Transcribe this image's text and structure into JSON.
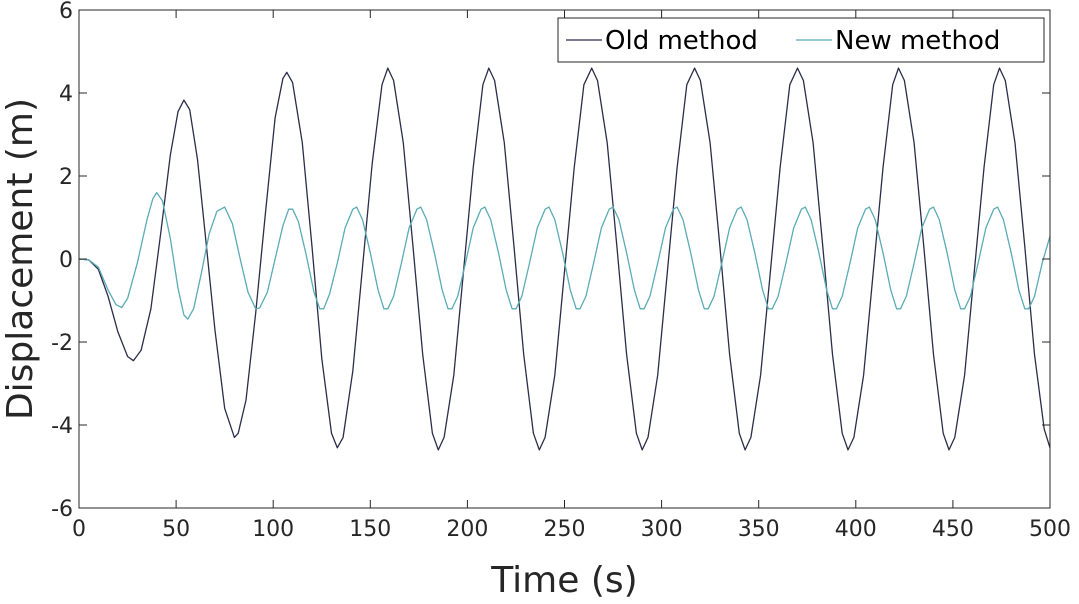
{
  "chart_data": {
    "type": "line",
    "title": "",
    "xlabel": "Time (s)",
    "ylabel": "Displacement (m)",
    "xlim": [
      0,
      500
    ],
    "ylim": [
      -6,
      6
    ],
    "xticks": [
      0,
      50,
      100,
      150,
      200,
      250,
      300,
      350,
      400,
      450,
      500
    ],
    "yticks": [
      -6,
      -4,
      -2,
      0,
      2,
      4,
      6
    ],
    "xtick_labels": [
      "0",
      "50",
      "100",
      "150",
      "200",
      "250",
      "300",
      "350",
      "400",
      "450",
      "500"
    ],
    "ytick_labels": [
      "-6",
      "-4",
      "-2",
      "0",
      "2",
      "4",
      "6"
    ],
    "grid": false,
    "legend_position": "top-right",
    "series": [
      {
        "name": "Old method",
        "color": "#2b2d4a",
        "points": [
          [
            0,
            0
          ],
          [
            5,
            -0.02
          ],
          [
            10,
            -0.25
          ],
          [
            15,
            -0.9
          ],
          [
            20,
            -1.75
          ],
          [
            25,
            -2.35
          ],
          [
            28,
            -2.45
          ],
          [
            32,
            -2.2
          ],
          [
            37,
            -1.2
          ],
          [
            42,
            0.6
          ],
          [
            47,
            2.5
          ],
          [
            51,
            3.55
          ],
          [
            54,
            3.83
          ],
          [
            57,
            3.6
          ],
          [
            61,
            2.4
          ],
          [
            65,
            0.6
          ],
          [
            70,
            -1.7
          ],
          [
            75,
            -3.6
          ],
          [
            80,
            -4.3
          ],
          [
            82,
            -4.2
          ],
          [
            86,
            -3.4
          ],
          [
            91,
            -1.3
          ],
          [
            96,
            1.1
          ],
          [
            101,
            3.4
          ],
          [
            105,
            4.35
          ],
          [
            107,
            4.5
          ],
          [
            110,
            4.25
          ],
          [
            115,
            2.8
          ],
          [
            120,
            0.3
          ],
          [
            125,
            -2.4
          ],
          [
            130,
            -4.2
          ],
          [
            133,
            -4.55
          ],
          [
            136,
            -4.3
          ],
          [
            141,
            -2.7
          ],
          [
            146,
            -0.2
          ],
          [
            151,
            2.3
          ],
          [
            156,
            4.2
          ],
          [
            159,
            4.6
          ],
          [
            162,
            4.3
          ],
          [
            167,
            2.8
          ],
          [
            172,
            0.3
          ],
          [
            177,
            -2.3
          ],
          [
            182,
            -4.2
          ],
          [
            185,
            -4.6
          ],
          [
            188,
            -4.3
          ],
          [
            193,
            -2.8
          ],
          [
            198,
            -0.3
          ],
          [
            203,
            2.2
          ],
          [
            208,
            4.2
          ],
          [
            211,
            4.6
          ],
          [
            214,
            4.3
          ],
          [
            219,
            2.8
          ],
          [
            224,
            0.3
          ],
          [
            229,
            -2.3
          ],
          [
            234,
            -4.2
          ],
          [
            237,
            -4.6
          ],
          [
            240,
            -4.3
          ],
          [
            245,
            -2.8
          ],
          [
            250,
            -0.3
          ],
          [
            255,
            2.2
          ],
          [
            260,
            4.2
          ],
          [
            264,
            4.6
          ],
          [
            267,
            4.3
          ],
          [
            272,
            2.8
          ],
          [
            277,
            0.3
          ],
          [
            282,
            -2.3
          ],
          [
            287,
            -4.2
          ],
          [
            290,
            -4.6
          ],
          [
            293,
            -4.3
          ],
          [
            298,
            -2.8
          ],
          [
            303,
            -0.3
          ],
          [
            308,
            2.2
          ],
          [
            313,
            4.2
          ],
          [
            317,
            4.6
          ],
          [
            320,
            4.3
          ],
          [
            325,
            2.8
          ],
          [
            330,
            0.3
          ],
          [
            335,
            -2.3
          ],
          [
            340,
            -4.2
          ],
          [
            343,
            -4.6
          ],
          [
            346,
            -4.3
          ],
          [
            351,
            -2.8
          ],
          [
            356,
            -0.3
          ],
          [
            361,
            2.2
          ],
          [
            366,
            4.2
          ],
          [
            370,
            4.6
          ],
          [
            373,
            4.3
          ],
          [
            378,
            2.8
          ],
          [
            383,
            0.3
          ],
          [
            388,
            -2.3
          ],
          [
            393,
            -4.2
          ],
          [
            396,
            -4.6
          ],
          [
            399,
            -4.3
          ],
          [
            404,
            -2.8
          ],
          [
            409,
            -0.3
          ],
          [
            414,
            2.2
          ],
          [
            419,
            4.2
          ],
          [
            422,
            4.6
          ],
          [
            425,
            4.3
          ],
          [
            430,
            2.8
          ],
          [
            435,
            0.3
          ],
          [
            440,
            -2.3
          ],
          [
            445,
            -4.2
          ],
          [
            448,
            -4.6
          ],
          [
            451,
            -4.3
          ],
          [
            456,
            -2.8
          ],
          [
            461,
            -0.3
          ],
          [
            466,
            2.2
          ],
          [
            471,
            4.2
          ],
          [
            474,
            4.6
          ],
          [
            477,
            4.3
          ],
          [
            482,
            2.8
          ],
          [
            487,
            0.3
          ],
          [
            492,
            -2.3
          ],
          [
            497,
            -4.1
          ],
          [
            500,
            -4.55
          ]
        ]
      },
      {
        "name": "New method",
        "color": "#5aabb5",
        "points": [
          [
            0,
            0
          ],
          [
            5,
            -0.02
          ],
          [
            10,
            -0.2
          ],
          [
            15,
            -0.75
          ],
          [
            19,
            -1.1
          ],
          [
            22,
            -1.17
          ],
          [
            25,
            -0.95
          ],
          [
            30,
            -0.1
          ],
          [
            35,
            0.95
          ],
          [
            38,
            1.45
          ],
          [
            40,
            1.6
          ],
          [
            43,
            1.4
          ],
          [
            47,
            0.5
          ],
          [
            51,
            -0.7
          ],
          [
            54,
            -1.35
          ],
          [
            56,
            -1.45
          ],
          [
            59,
            -1.2
          ],
          [
            63,
            -0.35
          ],
          [
            67,
            0.6
          ],
          [
            71,
            1.15
          ],
          [
            75,
            1.25
          ],
          [
            79,
            0.85
          ],
          [
            83,
            0.0
          ],
          [
            87,
            -0.8
          ],
          [
            91,
            -1.2
          ],
          [
            93,
            -1.18
          ],
          [
            97,
            -0.8
          ],
          [
            101,
            0.0
          ],
          [
            105,
            0.8
          ],
          [
            108,
            1.2
          ],
          [
            110,
            1.2
          ],
          [
            113,
            0.9
          ],
          [
            117,
            0.1
          ],
          [
            121,
            -0.8
          ],
          [
            124,
            -1.2
          ],
          [
            126,
            -1.2
          ],
          [
            129,
            -0.85
          ],
          [
            133,
            -0.1
          ],
          [
            137,
            0.75
          ],
          [
            141,
            1.2
          ],
          [
            143,
            1.25
          ],
          [
            146,
            0.95
          ],
          [
            150,
            0.15
          ],
          [
            154,
            -0.75
          ],
          [
            157,
            -1.2
          ],
          [
            159,
            -1.2
          ],
          [
            162,
            -0.9
          ],
          [
            166,
            -0.1
          ],
          [
            170,
            0.75
          ],
          [
            174,
            1.2
          ],
          [
            176,
            1.25
          ],
          [
            179,
            0.95
          ],
          [
            183,
            0.15
          ],
          [
            187,
            -0.75
          ],
          [
            190,
            -1.2
          ],
          [
            192,
            -1.2
          ],
          [
            195,
            -0.9
          ],
          [
            199,
            -0.1
          ],
          [
            203,
            0.75
          ],
          [
            207,
            1.2
          ],
          [
            209,
            1.25
          ],
          [
            212,
            0.95
          ],
          [
            216,
            0.15
          ],
          [
            220,
            -0.75
          ],
          [
            223,
            -1.2
          ],
          [
            225,
            -1.2
          ],
          [
            228,
            -0.9
          ],
          [
            232,
            -0.1
          ],
          [
            236,
            0.75
          ],
          [
            240,
            1.2
          ],
          [
            242,
            1.25
          ],
          [
            245,
            0.95
          ],
          [
            249,
            0.15
          ],
          [
            253,
            -0.75
          ],
          [
            256,
            -1.2
          ],
          [
            258,
            -1.2
          ],
          [
            261,
            -0.9
          ],
          [
            265,
            -0.1
          ],
          [
            269,
            0.75
          ],
          [
            273,
            1.2
          ],
          [
            275,
            1.25
          ],
          [
            278,
            0.95
          ],
          [
            282,
            0.15
          ],
          [
            286,
            -0.75
          ],
          [
            289,
            -1.2
          ],
          [
            291,
            -1.2
          ],
          [
            294,
            -0.9
          ],
          [
            298,
            -0.1
          ],
          [
            302,
            0.75
          ],
          [
            306,
            1.2
          ],
          [
            308,
            1.25
          ],
          [
            311,
            0.95
          ],
          [
            315,
            0.15
          ],
          [
            319,
            -0.75
          ],
          [
            322,
            -1.2
          ],
          [
            324,
            -1.2
          ],
          [
            327,
            -0.9
          ],
          [
            331,
            -0.1
          ],
          [
            335,
            0.75
          ],
          [
            339,
            1.2
          ],
          [
            341,
            1.25
          ],
          [
            344,
            0.95
          ],
          [
            348,
            0.15
          ],
          [
            352,
            -0.75
          ],
          [
            355,
            -1.2
          ],
          [
            357,
            -1.2
          ],
          [
            360,
            -0.9
          ],
          [
            364,
            -0.1
          ],
          [
            368,
            0.75
          ],
          [
            372,
            1.2
          ],
          [
            374,
            1.25
          ],
          [
            377,
            0.95
          ],
          [
            381,
            0.15
          ],
          [
            385,
            -0.75
          ],
          [
            388,
            -1.2
          ],
          [
            390,
            -1.2
          ],
          [
            393,
            -0.9
          ],
          [
            397,
            -0.1
          ],
          [
            401,
            0.75
          ],
          [
            405,
            1.2
          ],
          [
            407,
            1.25
          ],
          [
            410,
            0.95
          ],
          [
            414,
            0.15
          ],
          [
            418,
            -0.75
          ],
          [
            421,
            -1.2
          ],
          [
            423,
            -1.2
          ],
          [
            426,
            -0.9
          ],
          [
            430,
            -0.1
          ],
          [
            434,
            0.75
          ],
          [
            438,
            1.2
          ],
          [
            440,
            1.25
          ],
          [
            443,
            0.95
          ],
          [
            447,
            0.15
          ],
          [
            451,
            -0.75
          ],
          [
            454,
            -1.2
          ],
          [
            456,
            -1.2
          ],
          [
            459,
            -0.9
          ],
          [
            463,
            -0.1
          ],
          [
            467,
            0.75
          ],
          [
            471,
            1.2
          ],
          [
            473,
            1.25
          ],
          [
            476,
            0.95
          ],
          [
            480,
            0.15
          ],
          [
            484,
            -0.75
          ],
          [
            487,
            -1.2
          ],
          [
            489,
            -1.2
          ],
          [
            492,
            -0.9
          ],
          [
            496,
            -0.1
          ],
          [
            500,
            0.55
          ]
        ]
      }
    ]
  }
}
